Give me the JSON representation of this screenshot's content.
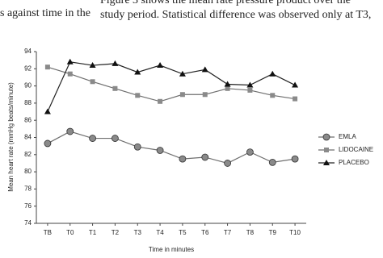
{
  "page_text": {
    "left_fragment": "s against time in the",
    "right_lines": [
      "Figure 3 shows the mean rate pressure product over the",
      "study period. Statistical difference was observed only at T3,"
    ]
  },
  "chart_data": {
    "type": "line",
    "y_label": "Mean heart rate (mmHg beats/minute)",
    "x_label": "Time in minutes",
    "categories": [
      "TB",
      "T0",
      "T1",
      "T2",
      "T3",
      "T4",
      "T5",
      "T6",
      "T7",
      "T8",
      "T9",
      "T10"
    ],
    "series": [
      {
        "name": "EMLA",
        "color": "#6e6e6e",
        "marker": "circle",
        "values": [
          83.3,
          84.7,
          83.9,
          83.9,
          82.9,
          82.5,
          81.5,
          81.7,
          81.0,
          82.3,
          81.1,
          81.5
        ]
      },
      {
        "name": "LIDOCAINE",
        "color": "#6e6e6e",
        "marker": "square",
        "values": [
          92.2,
          91.4,
          90.5,
          89.7,
          88.9,
          88.2,
          89.0,
          89.0,
          89.7,
          89.5,
          88.9,
          88.5
        ]
      },
      {
        "name": "PLACEBO",
        "color": "#222222",
        "marker": "triangle",
        "values": [
          87.0,
          92.8,
          92.4,
          92.6,
          91.6,
          92.4,
          91.4,
          91.9,
          90.2,
          90.1,
          91.4,
          90.1
        ]
      }
    ],
    "ylim": [
      74,
      94
    ],
    "yticks": [
      74,
      76,
      78,
      80,
      82,
      84,
      86,
      88,
      90,
      92,
      94
    ],
    "legend": "right"
  }
}
